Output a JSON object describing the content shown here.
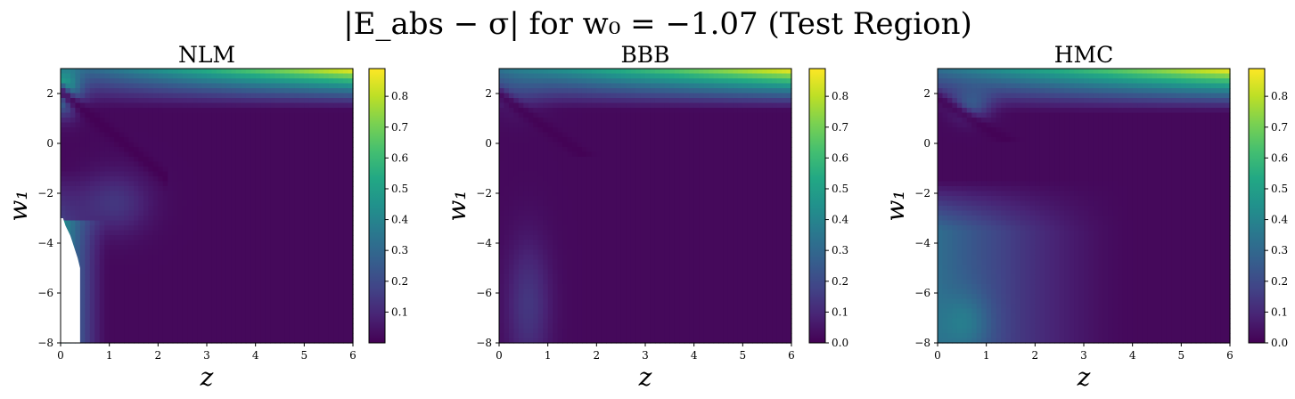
{
  "suptitle": "|E_abs − σ| for w₀ = −1.07 (Test Region)",
  "colormap": "viridis",
  "chart_data": [
    {
      "type": "heatmap",
      "title": "NLM",
      "xlabel": "z",
      "ylabel": "w₁",
      "xlim": [
        0,
        6
      ],
      "ylim": [
        -8,
        3
      ],
      "x_ticks": [
        "0",
        "1",
        "2",
        "3",
        "4",
        "5",
        "6"
      ],
      "y_ticks": [
        "−8",
        "−6",
        "−4",
        "−2",
        "0",
        "2"
      ],
      "colorbar_range": [
        0,
        0.89
      ],
      "colorbar_ticks": [
        "0.1",
        "0.2",
        "0.3",
        "0.4",
        "0.5",
        "0.6",
        "0.7",
        "0.8"
      ],
      "grid": false
    },
    {
      "type": "heatmap",
      "title": "BBB",
      "xlabel": "z",
      "ylabel": "w₁",
      "xlim": [
        0,
        6
      ],
      "ylim": [
        -8,
        3
      ],
      "x_ticks": [
        "0",
        "1",
        "2",
        "3",
        "4",
        "5",
        "6"
      ],
      "y_ticks": [
        "−8",
        "−6",
        "−4",
        "−2",
        "0",
        "2"
      ],
      "colorbar_range": [
        0,
        0.89
      ],
      "colorbar_ticks": [
        "0.0",
        "0.1",
        "0.2",
        "0.3",
        "0.4",
        "0.5",
        "0.6",
        "0.7",
        "0.8"
      ],
      "grid": false
    },
    {
      "type": "heatmap",
      "title": "HMC",
      "xlabel": "z",
      "ylabel": "w₁",
      "xlim": [
        0,
        6
      ],
      "ylim": [
        -8,
        3
      ],
      "x_ticks": [
        "0",
        "1",
        "2",
        "3",
        "4",
        "5",
        "6"
      ],
      "y_ticks": [
        "−8",
        "−6",
        "−4",
        "−2",
        "0",
        "2"
      ],
      "colorbar_range": [
        0,
        0.89
      ],
      "colorbar_ticks": [
        "0.0",
        "0.1",
        "0.2",
        "0.3",
        "0.4",
        "0.5",
        "0.6",
        "0.7",
        "0.8"
      ],
      "grid": false
    }
  ]
}
